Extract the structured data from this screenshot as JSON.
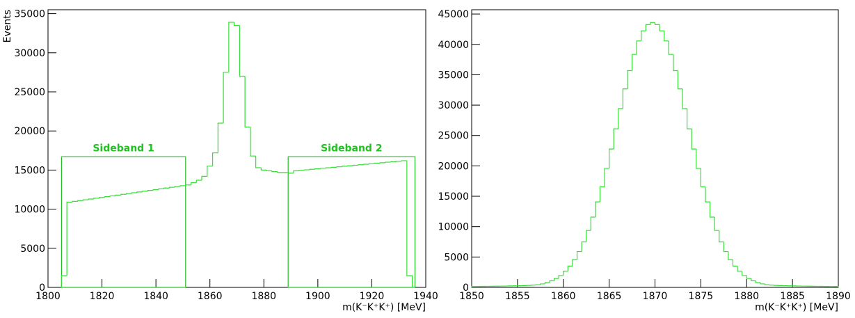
{
  "chart_data": [
    {
      "type": "histogram",
      "color": "#33e033",
      "ylabel": "Events",
      "xlabel": "m(K⁻K⁺K⁺) [MeV]",
      "xlim": [
        1800,
        1940
      ],
      "ylim": [
        0,
        35500
      ],
      "xticks": [
        1800,
        1820,
        1840,
        1860,
        1880,
        1900,
        1920,
        1940
      ],
      "yticks": [
        0,
        5000,
        10000,
        15000,
        20000,
        25000,
        30000,
        35000
      ],
      "bins": [
        1805,
        1807,
        1809,
        1811,
        1813,
        1815,
        1817,
        1819,
        1821,
        1823,
        1825,
        1827,
        1829,
        1831,
        1833,
        1835,
        1837,
        1839,
        1841,
        1843,
        1845,
        1847,
        1849,
        1851,
        1853,
        1855,
        1857,
        1859,
        1861,
        1863,
        1865,
        1867,
        1869,
        1871,
        1873,
        1875,
        1877,
        1879,
        1881,
        1883,
        1885,
        1887,
        1889,
        1891,
        1893,
        1895,
        1897,
        1899,
        1901,
        1903,
        1905,
        1907,
        1909,
        1911,
        1913,
        1915,
        1917,
        1919,
        1921,
        1923,
        1925,
        1927,
        1929,
        1931,
        1933,
        1935
      ],
      "counts": [
        1500,
        10900,
        11000,
        11100,
        11200,
        11300,
        11400,
        11500,
        11600,
        11700,
        11800,
        11900,
        12000,
        12100,
        12200,
        12300,
        12400,
        12500,
        12600,
        12700,
        12800,
        12900,
        13000,
        13100,
        13400,
        13700,
        14200,
        15500,
        17200,
        21000,
        27500,
        33900,
        33500,
        27000,
        20500,
        16800,
        15300,
        15000,
        14900,
        14800,
        14700,
        14700,
        14600,
        14900,
        14970,
        15030,
        15100,
        15160,
        15230,
        15290,
        15360,
        15420,
        15490,
        15550,
        15620,
        15680,
        15750,
        15810,
        15880,
        15940,
        16010,
        16070,
        16140,
        16200,
        1500
      ],
      "sidebands": [
        {
          "label": "Sideband 1",
          "range": [
            1805,
            1851
          ],
          "height": 16700,
          "color": "#22c022"
        },
        {
          "label": "Sideband 2",
          "range": [
            1889,
            1936
          ],
          "height": 16700,
          "color": "#22c022"
        }
      ]
    },
    {
      "type": "histogram",
      "color": "#33e033",
      "xlabel": "m(K⁻K⁺K⁺) [MeV]",
      "xlim": [
        1850,
        1890
      ],
      "ylim": [
        0,
        45700
      ],
      "xticks": [
        1850,
        1855,
        1860,
        1865,
        1870,
        1875,
        1880,
        1885,
        1890
      ],
      "yticks": [
        0,
        5000,
        10000,
        15000,
        20000,
        25000,
        30000,
        35000,
        40000,
        45000
      ],
      "bins": [
        1850,
        1850.5,
        1851,
        1851.5,
        1852,
        1852.5,
        1853,
        1853.5,
        1854,
        1854.5,
        1855,
        1855.5,
        1856,
        1856.5,
        1857,
        1857.5,
        1858,
        1858.5,
        1859,
        1859.5,
        1860,
        1860.5,
        1861,
        1861.5,
        1862,
        1862.5,
        1863,
        1863.5,
        1864,
        1864.5,
        1865,
        1865.5,
        1866,
        1866.5,
        1867,
        1867.5,
        1868,
        1868.5,
        1869,
        1869.5,
        1870,
        1870.5,
        1871,
        1871.5,
        1872,
        1872.5,
        1873,
        1873.5,
        1874,
        1874.5,
        1875,
        1875.5,
        1876,
        1876.5,
        1877,
        1877.5,
        1878,
        1878.5,
        1879,
        1879.5,
        1880,
        1880.5,
        1881,
        1881.5,
        1882,
        1882.5,
        1883,
        1883.5,
        1884,
        1884.5,
        1885,
        1885.5,
        1886,
        1886.5,
        1887,
        1887.5,
        1888,
        1888.5,
        1889,
        1889.5,
        1890
      ],
      "counts": [
        150,
        160,
        170,
        180,
        190,
        200,
        210,
        220,
        240,
        260,
        280,
        300,
        330,
        370,
        430,
        580,
        790,
        1080,
        1470,
        1970,
        2660,
        3510,
        4570,
        5890,
        7480,
        9370,
        11570,
        14070,
        16550,
        19580,
        22780,
        26100,
        29440,
        32670,
        35680,
        38350,
        40570,
        42230,
        43250,
        43600,
        43250,
        42230,
        40570,
        38350,
        35680,
        32670,
        29440,
        26100,
        22780,
        19580,
        16550,
        14070,
        11570,
        9370,
        7480,
        5890,
        4570,
        3510,
        2660,
        1970,
        1470,
        1080,
        790,
        580,
        430,
        370,
        330,
        300,
        280,
        260,
        240,
        220,
        210,
        200,
        190,
        180,
        170,
        160,
        150,
        140
      ]
    }
  ]
}
